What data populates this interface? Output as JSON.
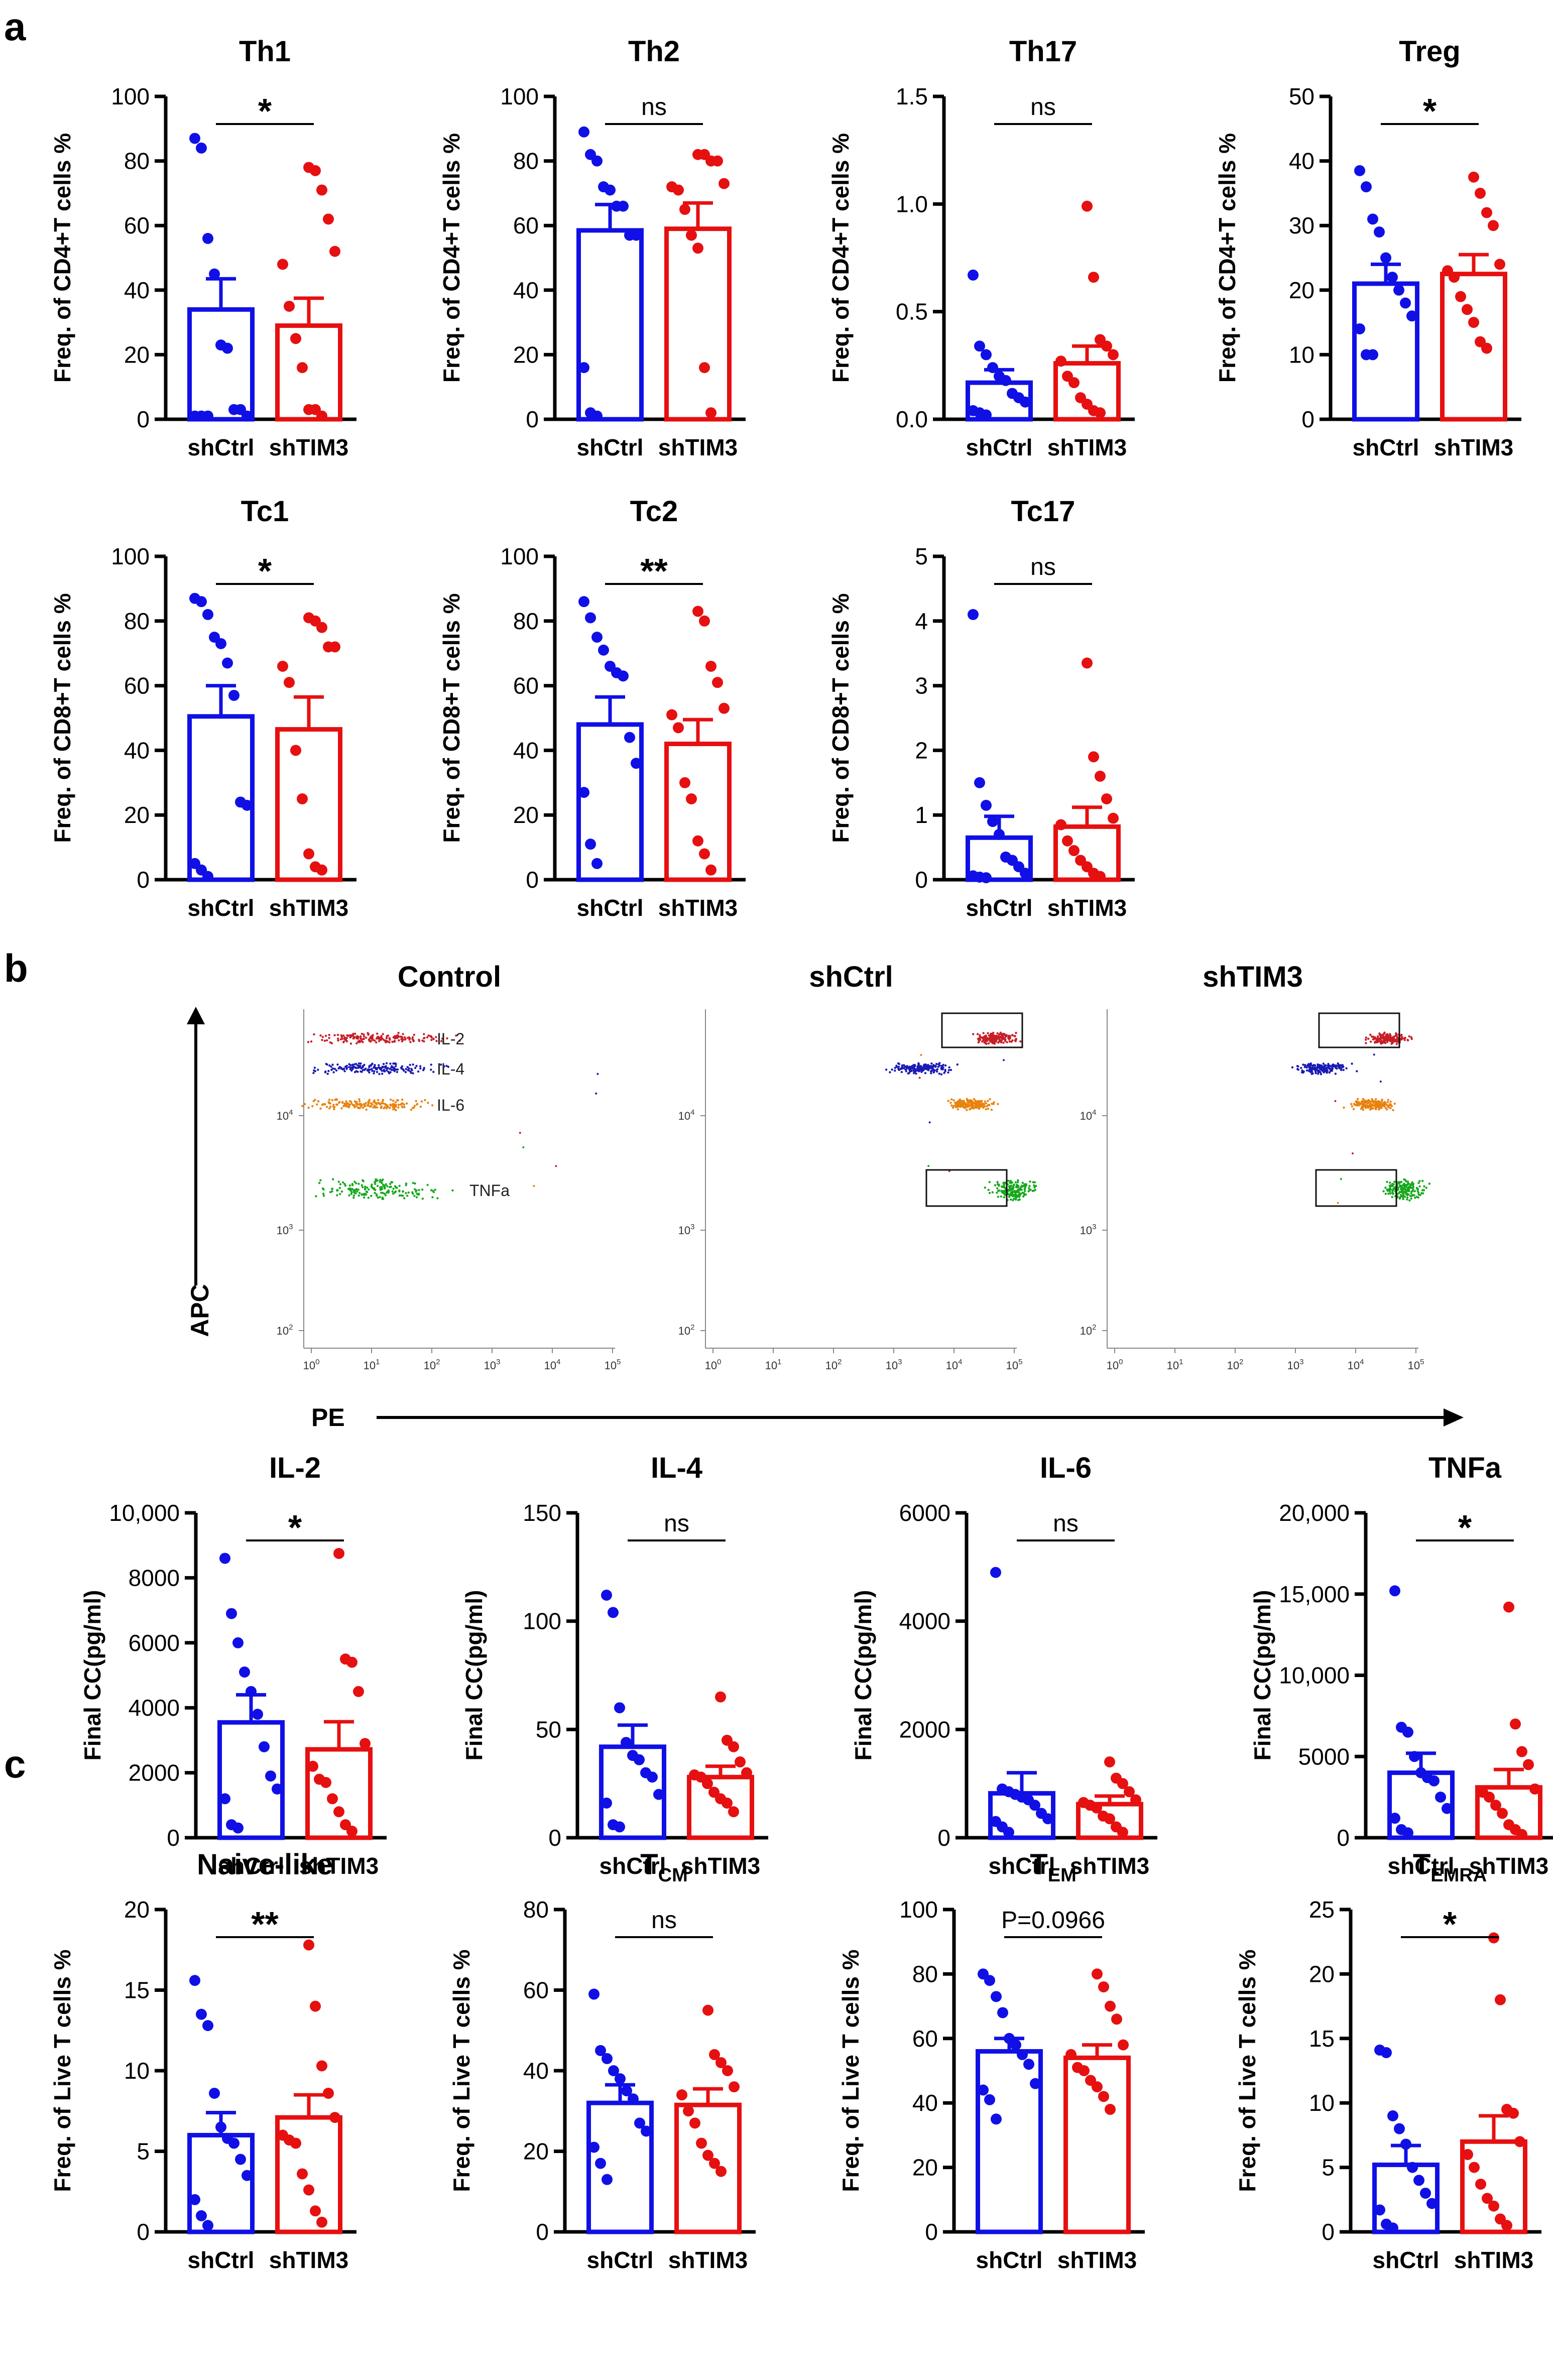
{
  "panels": {
    "a": "a",
    "b": "b",
    "c": "c"
  },
  "colors": {
    "blue": "#1010e6",
    "red": "#e61010",
    "ink": "#000000"
  },
  "chart_data": [
    {
      "id": "Th1",
      "type": "bar",
      "title": "Th1",
      "ylabel": "Freq. of CD4+T cells %",
      "categories": [
        "shCtrl",
        "shTIM3"
      ],
      "ylim": [
        0,
        100
      ],
      "yticks": [
        "0",
        "20",
        "40",
        "60",
        "80",
        "100"
      ],
      "means": [
        34,
        29
      ],
      "sems": [
        9.5,
        8.5
      ],
      "sig": "*",
      "points": [
        [
          87,
          84,
          56,
          45,
          23,
          22,
          3,
          3,
          1,
          1,
          1,
          1
        ],
        [
          78,
          77,
          71,
          62,
          52,
          48,
          35,
          25,
          16,
          3,
          3,
          1
        ]
      ]
    },
    {
      "id": "Th2",
      "type": "bar",
      "title": "Th2",
      "ylabel": "Freq. of CD4+T cells %",
      "categories": [
        "shCtrl",
        "shTIM3"
      ],
      "ylim": [
        0,
        100
      ],
      "yticks": [
        "0",
        "20",
        "40",
        "60",
        "80",
        "100"
      ],
      "means": [
        58.5,
        59
      ],
      "sems": [
        8,
        8
      ],
      "sig": "ns",
      "points": [
        [
          89,
          82,
          80,
          72,
          71,
          66,
          66,
          57,
          57,
          16,
          2,
          1
        ],
        [
          82,
          82,
          80,
          80,
          73,
          72,
          71,
          65,
          57,
          53,
          16,
          2
        ]
      ]
    },
    {
      "id": "Th17",
      "type": "bar",
      "title": "Th17",
      "ylabel": "Freq. of CD4+T cells %",
      "categories": [
        "shCtrl",
        "shTIM3"
      ],
      "ylim": [
        0,
        1.5
      ],
      "yticks": [
        "0.0",
        "0.5",
        "1.0",
        "1.5"
      ],
      "means": [
        0.17,
        0.26
      ],
      "sems": [
        0.06,
        0.08
      ],
      "sig": "ns",
      "points": [
        [
          0.67,
          0.34,
          0.3,
          0.24,
          0.2,
          0.18,
          0.12,
          0.1,
          0.08,
          0.04,
          0.03,
          0.02
        ],
        [
          0.99,
          0.66,
          0.37,
          0.34,
          0.3,
          0.27,
          0.2,
          0.17,
          0.1,
          0.07,
          0.04,
          0.03
        ]
      ]
    },
    {
      "id": "Treg",
      "type": "bar",
      "title": "Treg",
      "ylabel": "Freq. of CD4+T cells %",
      "categories": [
        "shCtrl",
        "shTIM3"
      ],
      "ylim": [
        0,
        50
      ],
      "yticks": [
        "0",
        "10",
        "20",
        "30",
        "40",
        "50"
      ],
      "means": [
        21,
        22.5
      ],
      "sems": [
        3,
        3
      ],
      "sig": "*",
      "points": [
        [
          38.5,
          36,
          31,
          29,
          25,
          22,
          20,
          18,
          16,
          14,
          10,
          10
        ],
        [
          37.5,
          35,
          32,
          30,
          24,
          23,
          22,
          19,
          17,
          15,
          12,
          11
        ]
      ]
    },
    {
      "id": "Tc1",
      "type": "bar",
      "title": "Tc1",
      "ylabel": "Freq. of CD8+T cells %",
      "categories": [
        "shCtrl",
        "shTIM3"
      ],
      "ylim": [
        0,
        100
      ],
      "yticks": [
        "0",
        "20",
        "40",
        "60",
        "80",
        "100"
      ],
      "means": [
        50.5,
        46.5
      ],
      "sems": [
        9.5,
        10
      ],
      "sig": "*",
      "points": [
        [
          87,
          86,
          82,
          75,
          73,
          67,
          57,
          24,
          23,
          5,
          3,
          1
        ],
        [
          81,
          80,
          78,
          72,
          72,
          66,
          61,
          40,
          25,
          8,
          4,
          3
        ]
      ]
    },
    {
      "id": "Tc2",
      "type": "bar",
      "title": "Tc2",
      "ylabel": "Freq. of CD8+T cells %",
      "categories": [
        "shCtrl",
        "shTIM3"
      ],
      "ylim": [
        0,
        100
      ],
      "yticks": [
        "0",
        "20",
        "40",
        "60",
        "80",
        "100"
      ],
      "means": [
        48,
        42
      ],
      "sems": [
        8.5,
        7.5
      ],
      "sig": "**",
      "points": [
        [
          86,
          81,
          75,
          71,
          66,
          64,
          63,
          44,
          36,
          27,
          11,
          5
        ],
        [
          83,
          80,
          66,
          61,
          53,
          51,
          47,
          30,
          25,
          12,
          8,
          3
        ]
      ]
    },
    {
      "id": "Tc17",
      "type": "bar",
      "title": "Tc17",
      "ylabel": "Freq. of CD8+T cells %",
      "categories": [
        "shCtrl",
        "shTIM3"
      ],
      "ylim": [
        0,
        5
      ],
      "yticks": [
        "0",
        "1",
        "2",
        "3",
        "4",
        "5"
      ],
      "means": [
        0.65,
        0.82
      ],
      "sems": [
        0.33,
        0.3
      ],
      "sig": "ns",
      "points": [
        [
          4.1,
          1.5,
          1.15,
          0.9,
          0.7,
          0.35,
          0.3,
          0.2,
          0.1,
          0.06,
          0.04,
          0.03
        ],
        [
          3.35,
          1.9,
          1.6,
          1.25,
          0.95,
          0.85,
          0.6,
          0.45,
          0.3,
          0.2,
          0.1,
          0.05
        ]
      ]
    },
    {
      "id": "IL2",
      "type": "bar",
      "title": "IL-2",
      "ylabel": "Final CC(pg/ml)",
      "categories": [
        "shCtrl",
        "shTIM3"
      ],
      "ylim": [
        0,
        10000
      ],
      "yticks": [
        "0",
        "2000",
        "4000",
        "6000",
        "8000",
        "10,000"
      ],
      "means": [
        3550,
        2720
      ],
      "sems": [
        850,
        850
      ],
      "sig": "*",
      "points": [
        [
          8600,
          6900,
          6000,
          5100,
          4500,
          3800,
          2800,
          1900,
          1500,
          1200,
          400,
          300
        ],
        [
          8750,
          5500,
          5400,
          4500,
          2900,
          2200,
          1800,
          1700,
          1200,
          800,
          400,
          200
        ]
      ]
    },
    {
      "id": "IL4",
      "type": "bar",
      "title": "IL-4",
      "ylabel": "Final CC(pg/ml)",
      "categories": [
        "shCtrl",
        "shTIM3"
      ],
      "ylim": [
        0,
        150
      ],
      "yticks": [
        "0",
        "50",
        "100",
        "150"
      ],
      "means": [
        42,
        28
      ],
      "sems": [
        10,
        5
      ],
      "sig": "ns",
      "points": [
        [
          112,
          104,
          60,
          44,
          38,
          36,
          30,
          28,
          20,
          16,
          6,
          5
        ],
        [
          65,
          45,
          42,
          35,
          30,
          29,
          28,
          25,
          21,
          18,
          16,
          12
        ]
      ]
    },
    {
      "id": "IL6",
      "type": "bar",
      "title": "IL-6",
      "ylabel": "Final CC(pg/ml)",
      "categories": [
        "shCtrl",
        "shTIM3"
      ],
      "ylim": [
        0,
        6000
      ],
      "yticks": [
        "0",
        "2000",
        "4000",
        "6000"
      ],
      "means": [
        820,
        620
      ],
      "sems": [
        380,
        150
      ],
      "sig": "ns",
      "points": [
        [
          4900,
          900,
          850,
          800,
          750,
          700,
          600,
          450,
          350,
          300,
          200,
          100
        ],
        [
          1400,
          1100,
          1000,
          850,
          700,
          650,
          600,
          550,
          400,
          350,
          200,
          100
        ]
      ]
    },
    {
      "id": "TNFa",
      "type": "bar",
      "title": "TNFa",
      "ylabel": "Final CC(pg/ml)",
      "categories": [
        "shCtrl",
        "shTIM3"
      ],
      "ylim": [
        0,
        20000
      ],
      "yticks": [
        "0",
        "5000",
        "10,000",
        "15,000",
        "20,000"
      ],
      "means": [
        4000,
        3100
      ],
      "sems": [
        1200,
        1100
      ],
      "sig": "*",
      "points": [
        [
          15200,
          6800,
          6500,
          5000,
          4000,
          3700,
          3500,
          2500,
          1800,
          1200,
          500,
          300
        ],
        [
          14200,
          7000,
          5300,
          4500,
          3000,
          2800,
          2500,
          2000,
          1500,
          800,
          500,
          200
        ]
      ]
    },
    {
      "id": "Naive",
      "type": "bar",
      "title": "Naive-like",
      "ylabel": "Freq. of Live T cells %",
      "categories": [
        "shCtrl",
        "shTIM3"
      ],
      "ylim": [
        0,
        20
      ],
      "yticks": [
        "0",
        "5",
        "10",
        "15",
        "20"
      ],
      "means": [
        6,
        7.1
      ],
      "sems": [
        1.4,
        1.4
      ],
      "sig": "**",
      "points": [
        [
          15.6,
          13.5,
          12.8,
          8.6,
          6.5,
          5.8,
          5.5,
          4.5,
          3.5,
          2.0,
          1.0,
          0.4
        ],
        [
          17.8,
          14.0,
          10.3,
          8.6,
          7.1,
          6.0,
          5.7,
          5.5,
          3.6,
          2.6,
          1.3,
          0.6
        ]
      ]
    },
    {
      "id": "TCM",
      "type": "bar",
      "title": "T",
      "subscript": "CM",
      "ylabel": "Freq. of Live T cells %",
      "categories": [
        "shCtrl",
        "shTIM3"
      ],
      "ylim": [
        0,
        80
      ],
      "yticks": [
        "0",
        "20",
        "40",
        "60",
        "80"
      ],
      "means": [
        32,
        31.5
      ],
      "sems": [
        4.5,
        4
      ],
      "sig": "ns",
      "points": [
        [
          59,
          45,
          43,
          40,
          38,
          35,
          33,
          27,
          25,
          21,
          17,
          13
        ],
        [
          55,
          44,
          42,
          40,
          36,
          34,
          30,
          27,
          22,
          19,
          17,
          15
        ]
      ]
    },
    {
      "id": "TEM",
      "type": "bar",
      "title": "T",
      "subscript": "EM",
      "ylabel": "Freq. of Live T cells %",
      "categories": [
        "shCtrl",
        "shTIM3"
      ],
      "ylim": [
        0,
        100
      ],
      "yticks": [
        "0",
        "20",
        "40",
        "60",
        "80",
        "100"
      ],
      "means": [
        56,
        54
      ],
      "sems": [
        4,
        4
      ],
      "sig": "P=0.0966",
      "points": [
        [
          80,
          78,
          73,
          68,
          60,
          58,
          55,
          52,
          46,
          44,
          41,
          35
        ],
        [
          80,
          76,
          70,
          66,
          58,
          55,
          51,
          50,
          47,
          45,
          42,
          38
        ]
      ]
    },
    {
      "id": "TEMRA",
      "type": "bar",
      "title": "T",
      "subscript": "EMRA",
      "ylabel": "Freq. of Live T cells %",
      "categories": [
        "shCtrl",
        "shTIM3"
      ],
      "ylim": [
        0,
        25
      ],
      "yticks": [
        "0",
        "5",
        "10",
        "15",
        "20",
        "25"
      ],
      "means": [
        5.2,
        7
      ],
      "sems": [
        1.5,
        2
      ],
      "sig": "*",
      "points": [
        [
          14.1,
          13.9,
          9.0,
          8.0,
          6.8,
          5.0,
          4.0,
          3.0,
          2.2,
          1.7,
          0.6,
          0.3
        ],
        [
          22.8,
          18.0,
          9.5,
          9.2,
          7.0,
          6.0,
          5.0,
          3.7,
          2.6,
          2.0,
          1.0,
          0.5
        ]
      ]
    },
    {
      "id": "flow",
      "type": "scatter",
      "titles": [
        "Control",
        "shCtrl",
        "shTIM3"
      ],
      "ylabel": "APC",
      "xlabel": "PE",
      "populations": [
        "IL-2",
        "IL-4",
        "IL-6",
        "TNFa"
      ],
      "xticks": [
        "10^0",
        "10^1",
        "10^2",
        "10^3",
        "10^4",
        "10^5"
      ],
      "yticks": [
        "10^2",
        "10^3",
        "10^4"
      ]
    }
  ]
}
